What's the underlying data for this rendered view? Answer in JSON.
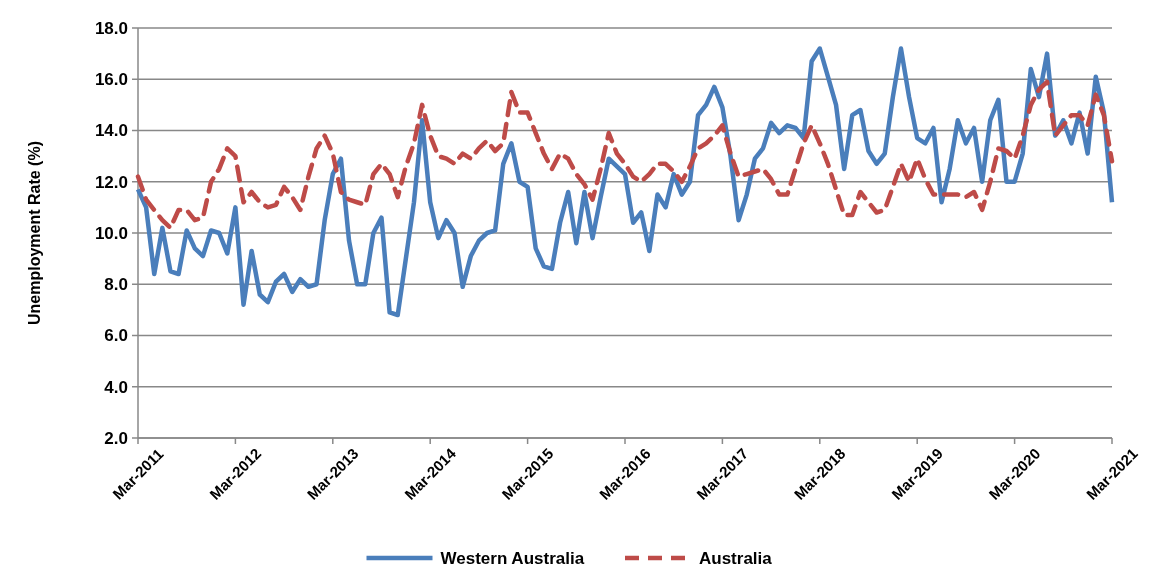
{
  "chart_data": {
    "type": "line",
    "ylabel": "Unemployment Rate (%)",
    "categories": [
      "Mar-2011",
      null,
      null,
      null,
      null,
      null,
      null,
      null,
      null,
      null,
      null,
      null,
      "Mar-2012",
      null,
      null,
      null,
      null,
      null,
      null,
      null,
      null,
      null,
      null,
      null,
      "Mar-2013",
      null,
      null,
      null,
      null,
      null,
      null,
      null,
      null,
      null,
      null,
      null,
      "Mar-2014",
      null,
      null,
      null,
      null,
      null,
      null,
      null,
      null,
      null,
      null,
      null,
      "Mar-2015",
      null,
      null,
      null,
      null,
      null,
      null,
      null,
      null,
      null,
      null,
      null,
      "Mar-2016",
      null,
      null,
      null,
      null,
      null,
      null,
      null,
      null,
      null,
      null,
      null,
      "Mar-2017",
      null,
      null,
      null,
      null,
      null,
      null,
      null,
      null,
      null,
      null,
      null,
      "Mar-2018",
      null,
      null,
      null,
      null,
      null,
      null,
      null,
      null,
      null,
      null,
      null,
      "Mar-2019",
      null,
      null,
      null,
      null,
      null,
      null,
      null,
      null,
      null,
      null,
      null,
      "Mar-2020",
      null,
      null,
      null,
      null,
      null,
      null,
      null,
      null,
      null,
      null,
      null,
      "Mar-2021"
    ],
    "series": [
      {
        "name": "Western Australia",
        "color": "#4a7ebb",
        "line_style": "solid",
        "values": [
          11.7,
          11.0,
          8.4,
          10.2,
          8.5,
          8.4,
          10.1,
          9.4,
          9.1,
          10.1,
          10.0,
          9.2,
          11.0,
          7.2,
          9.3,
          7.6,
          7.3,
          8.1,
          8.4,
          7.7,
          8.2,
          7.9,
          8.0,
          10.5,
          12.3,
          12.9,
          9.7,
          8.0,
          8.0,
          10.0,
          10.6,
          6.9,
          6.8,
          9.0,
          11.2,
          14.4,
          11.2,
          9.8,
          10.5,
          10.0,
          7.9,
          9.1,
          9.7,
          10.0,
          10.1,
          12.7,
          13.5,
          12.0,
          11.8,
          9.4,
          8.7,
          8.6,
          10.4,
          11.6,
          9.6,
          11.6,
          9.8,
          11.4,
          12.9,
          12.6,
          12.3,
          10.4,
          10.8,
          9.3,
          11.5,
          11.0,
          12.3,
          11.5,
          12.0,
          14.6,
          15.0,
          15.7,
          14.9,
          13.0,
          10.5,
          11.5,
          12.9,
          13.3,
          14.3,
          13.9,
          14.2,
          14.1,
          13.7,
          16.7,
          17.2,
          16.1,
          15.0,
          12.5,
          14.6,
          14.8,
          13.2,
          12.7,
          13.1,
          15.3,
          17.2,
          15.3,
          13.7,
          13.5,
          14.1,
          11.2,
          12.5,
          14.4,
          13.5,
          14.1,
          12.0,
          14.4,
          15.2,
          12.0,
          12.0,
          13.1,
          16.4,
          15.3,
          17.0,
          13.8,
          14.4,
          13.5,
          14.7,
          13.1,
          16.1,
          14.7,
          11.2
        ]
      },
      {
        "name": "Australia",
        "color": "#be4b48",
        "line_style": "dashed",
        "values": [
          12.2,
          11.3,
          10.9,
          10.5,
          10.2,
          10.9,
          10.9,
          10.5,
          10.6,
          12.0,
          12.5,
          13.3,
          13.0,
          11.2,
          11.6,
          11.2,
          11.0,
          11.1,
          11.8,
          11.4,
          10.9,
          12.2,
          13.3,
          13.8,
          13.1,
          11.6,
          11.3,
          11.2,
          11.1,
          12.3,
          12.7,
          12.3,
          11.4,
          12.6,
          13.5,
          15.0,
          13.8,
          13.0,
          12.9,
          12.7,
          13.1,
          12.9,
          13.3,
          13.6,
          13.2,
          13.5,
          15.5,
          14.7,
          14.7,
          13.9,
          13.1,
          12.5,
          13.1,
          12.9,
          12.3,
          11.9,
          11.3,
          12.5,
          13.9,
          13.1,
          12.7,
          12.2,
          12.0,
          12.3,
          12.7,
          12.7,
          12.4,
          12.0,
          12.6,
          13.3,
          13.5,
          13.8,
          14.2,
          13.1,
          12.2,
          12.3,
          12.4,
          12.5,
          12.1,
          11.5,
          11.5,
          12.5,
          13.5,
          14.2,
          13.5,
          12.7,
          11.7,
          10.7,
          10.7,
          11.6,
          11.2,
          10.8,
          10.9,
          11.8,
          12.7,
          12.0,
          12.9,
          12.1,
          11.5,
          11.5,
          11.5,
          11.5,
          11.4,
          11.6,
          10.9,
          12.0,
          13.3,
          13.2,
          12.9,
          13.8,
          15.0,
          15.6,
          15.9,
          13.8,
          14.2,
          14.6,
          14.6,
          14.2,
          15.4,
          14.6,
          12.8
        ]
      }
    ],
    "ylim": [
      2,
      18
    ],
    "yticks": [
      {
        "value": 2,
        "label": "2.0"
      },
      {
        "value": 4,
        "label": "4.0"
      },
      {
        "value": 6,
        "label": "6.0"
      },
      {
        "value": 8,
        "label": "8.0"
      },
      {
        "value": 10,
        "label": "10.0"
      },
      {
        "value": 12,
        "label": "12.0"
      },
      {
        "value": 14,
        "label": "14.0"
      },
      {
        "value": 16,
        "label": "16.0"
      },
      {
        "value": 18,
        "label": "18.0"
      }
    ],
    "grid": "y",
    "legend": "bottom",
    "marker": "none"
  }
}
